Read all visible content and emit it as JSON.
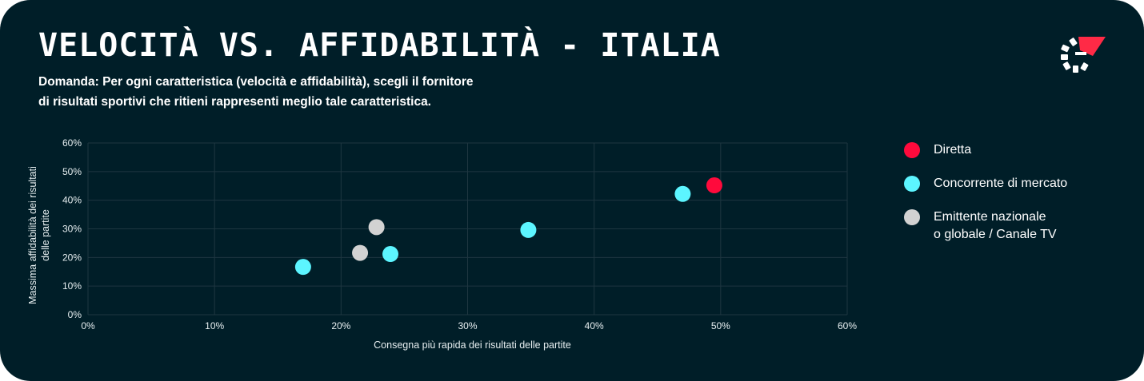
{
  "header": {
    "title": "VELOCITÀ VS. AFFIDABILITÀ - ITALIA",
    "subtitle_line1": "Domanda: Per ogni caratteristica (velocità e affidabilità), scegli il fornitore",
    "subtitle_line2": "di risultati sportivi che ritieni rappresenti meglio tale caratteristica."
  },
  "logo": {
    "icon": "brand-logo-icon",
    "accent": "#ff2a46"
  },
  "colors": {
    "background": "#001e28",
    "grid": "#1e3640",
    "text": "#ffffff",
    "axis_text": "#e6eef0"
  },
  "chart_data": {
    "type": "scatter",
    "xlabel": "Consegna più rapida dei risultati delle partite",
    "ylabel": "Massima affidabilità dei risultati\ndelle partite",
    "xlim": [
      0,
      60
    ],
    "ylim": [
      0,
      60
    ],
    "x_ticks": [
      0,
      10,
      20,
      30,
      40,
      50,
      60
    ],
    "y_ticks": [
      0,
      10,
      20,
      30,
      40,
      50,
      60
    ],
    "x_tick_labels": [
      "0%",
      "10%",
      "20%",
      "30%",
      "40%",
      "50%",
      "60%"
    ],
    "y_tick_labels": [
      "0%",
      "10%",
      "20%",
      "30%",
      "40%",
      "50%",
      "60%"
    ],
    "grid": true,
    "legend_position": "right",
    "series": [
      {
        "name": "Diretta",
        "color": "#ff0a3c",
        "points": [
          {
            "x": 49.5,
            "y": 45.2
          }
        ]
      },
      {
        "name": "Concorrente di mercato",
        "color": "#5cf5ff",
        "points": [
          {
            "x": 17.0,
            "y": 16.7
          },
          {
            "x": 23.9,
            "y": 21.2
          },
          {
            "x": 34.8,
            "y": 29.6
          },
          {
            "x": 47.0,
            "y": 42.2
          }
        ]
      },
      {
        "name": "Emittente nazionale\no globale / Canale TV",
        "color": "#d2d2d2",
        "points": [
          {
            "x": 21.5,
            "y": 21.6
          },
          {
            "x": 22.8,
            "y": 30.6
          }
        ]
      }
    ]
  }
}
